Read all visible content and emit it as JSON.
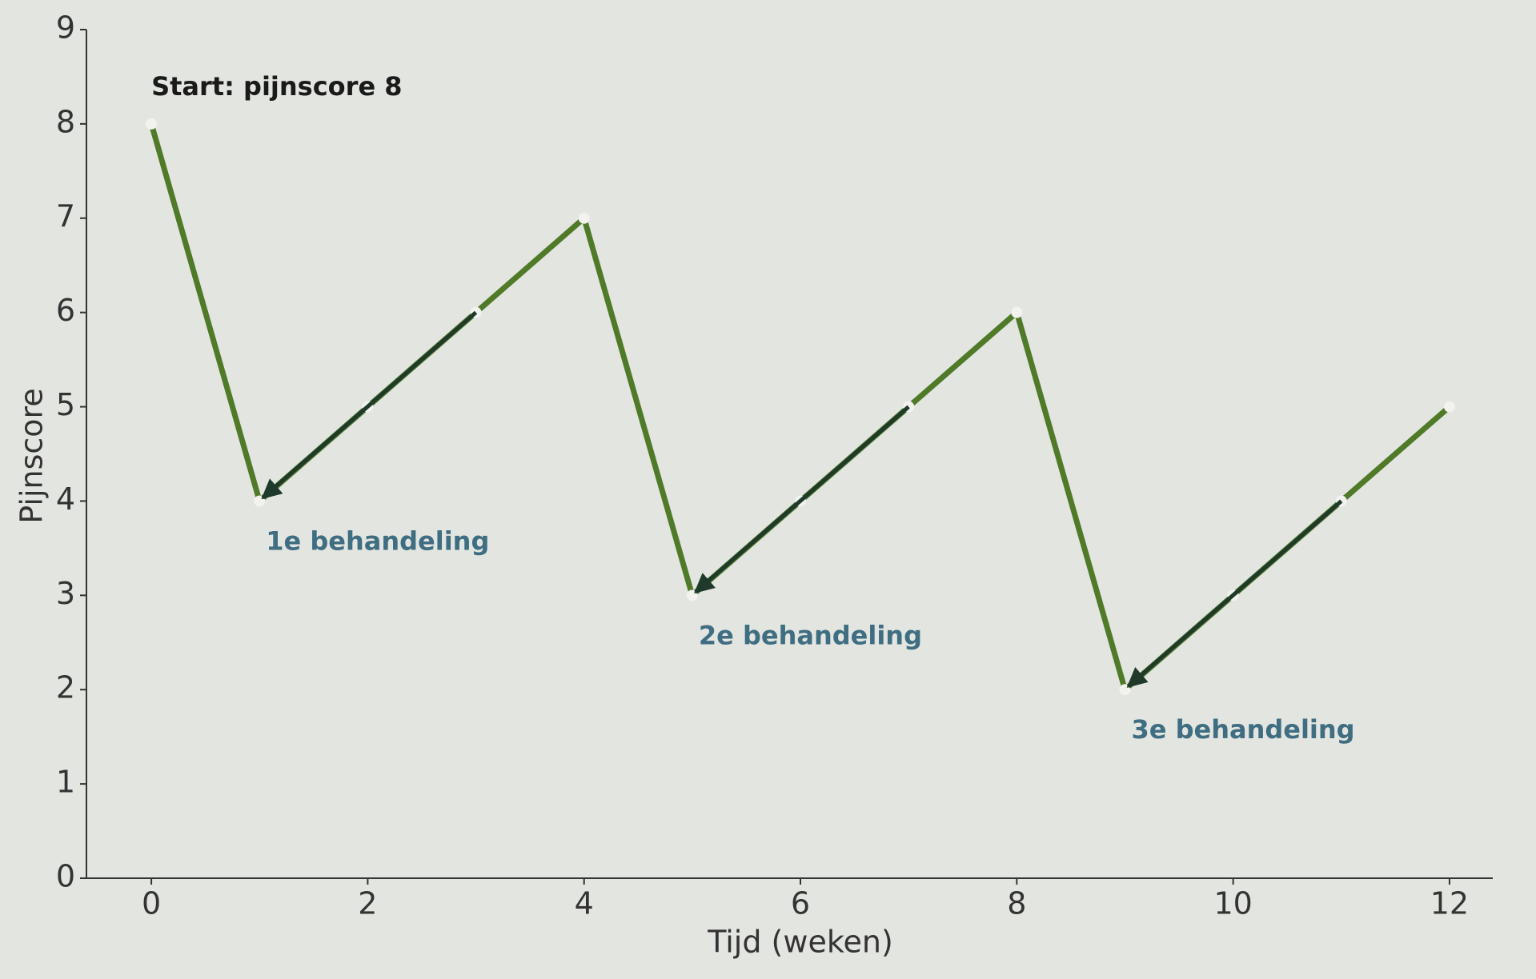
{
  "chart_data": {
    "type": "line",
    "xlabel": "Tijd (weken)",
    "ylabel": "Pijnscore",
    "x": [
      0,
      1,
      2,
      3,
      4,
      5,
      6,
      7,
      8,
      9,
      10,
      11,
      12
    ],
    "values": [
      8,
      4,
      5,
      6,
      7,
      3,
      4,
      5,
      6,
      2,
      3,
      4,
      5
    ],
    "color": "#4f7a28",
    "xlim": [
      -0.6,
      12.4
    ],
    "xticks": [
      0,
      2,
      4,
      6,
      8,
      10,
      12
    ],
    "ylim": [
      0,
      9
    ],
    "yticks": [
      0,
      1,
      2,
      3,
      4,
      5,
      6,
      7,
      8,
      9
    ],
    "grid": false,
    "annotations": [
      {
        "text": "Start: pijnscore 8",
        "x": 0,
        "y": 8,
        "arrow": false
      },
      {
        "text": "1e behandeling",
        "x": 1,
        "y": 4,
        "arrow": true
      },
      {
        "text": "2e behandeling",
        "x": 5,
        "y": 3,
        "arrow": true
      },
      {
        "text": "3e behandeling",
        "x": 9,
        "y": 2,
        "arrow": true
      }
    ]
  }
}
